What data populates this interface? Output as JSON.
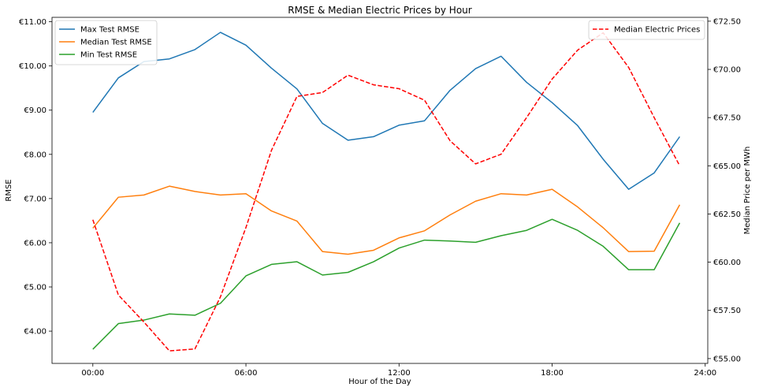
{
  "chart_data": {
    "type": "line",
    "title": "RMSE & Median Electric Prices by Hour",
    "xlabel": "Hour of the Day",
    "ylabel": "RMSE",
    "y2label": "Median Price per MWh",
    "x": [
      0,
      1,
      2,
      3,
      4,
      5,
      6,
      7,
      8,
      9,
      10,
      11,
      12,
      13,
      14,
      15,
      16,
      17,
      18,
      19,
      20,
      21,
      22,
      23
    ],
    "xlim": [
      -1.6,
      24.1
    ],
    "xticks": [
      0,
      6,
      12,
      18,
      24
    ],
    "xtick_labels": [
      "00:00",
      "06:00",
      "12:00",
      "18:00",
      "24:00"
    ],
    "ylim": [
      3.27,
      11.1
    ],
    "yticks": [
      4,
      5,
      6,
      7,
      8,
      9,
      10,
      11
    ],
    "ytick_labels": [
      "€4.00",
      "€5.00",
      "€6.00",
      "€7.00",
      "€8.00",
      "€9.00",
      "€10.00",
      "€11.00"
    ],
    "y2lim": [
      54.75,
      72.7
    ],
    "y2ticks": [
      55.0,
      57.5,
      60.0,
      62.5,
      65.0,
      67.5,
      70.0,
      72.5
    ],
    "y2tick_labels": [
      "€55.00",
      "€57.50",
      "€60.00",
      "€62.50",
      "€65.00",
      "€67.50",
      "€70.00",
      "€72.50"
    ],
    "series": [
      {
        "name": "Max Test RMSE",
        "axis": "left",
        "color": "#1f77b4",
        "dash": "solid",
        "values": [
          8.95,
          9.73,
          10.1,
          10.16,
          10.37,
          10.76,
          10.47,
          9.95,
          9.48,
          8.7,
          8.32,
          8.4,
          8.66,
          8.76,
          9.45,
          9.94,
          10.22,
          9.63,
          9.17,
          8.65,
          7.89,
          7.21,
          7.58,
          8.4
        ]
      },
      {
        "name": "Median Test RMSE",
        "axis": "left",
        "color": "#ff7f0e",
        "dash": "solid",
        "values": [
          6.33,
          7.03,
          7.08,
          7.28,
          7.16,
          7.08,
          7.11,
          6.72,
          6.49,
          5.8,
          5.74,
          5.83,
          6.11,
          6.27,
          6.63,
          6.94,
          7.11,
          7.08,
          7.21,
          6.81,
          6.34,
          5.8,
          5.81,
          6.86
        ]
      },
      {
        "name": "Min Test RMSE",
        "axis": "left",
        "color": "#2ca02c",
        "dash": "solid",
        "values": [
          3.59,
          4.17,
          4.25,
          4.39,
          4.36,
          4.63,
          5.25,
          5.51,
          5.57,
          5.27,
          5.33,
          5.57,
          5.88,
          6.06,
          6.04,
          6.01,
          6.16,
          6.28,
          6.53,
          6.28,
          5.92,
          5.39,
          5.39,
          6.45
        ]
      },
      {
        "name": "Median Electric Prices",
        "axis": "right",
        "color": "#ff0000",
        "dash": "dashed",
        "values": [
          62.2,
          58.3,
          56.9,
          55.4,
          55.5,
          58.2,
          61.8,
          65.8,
          68.6,
          68.8,
          69.7,
          69.2,
          69.0,
          68.4,
          66.3,
          65.1,
          65.6,
          67.5,
          69.5,
          71.0,
          71.9,
          70.1,
          67.5,
          65.0
        ]
      }
    ],
    "legends": [
      {
        "placement": "upper-left",
        "entries": [
          "Max Test RMSE",
          "Median Test RMSE",
          "Min Test RMSE"
        ]
      },
      {
        "placement": "upper-right",
        "entries": [
          "Median Electric Prices"
        ]
      }
    ],
    "grid": false
  }
}
